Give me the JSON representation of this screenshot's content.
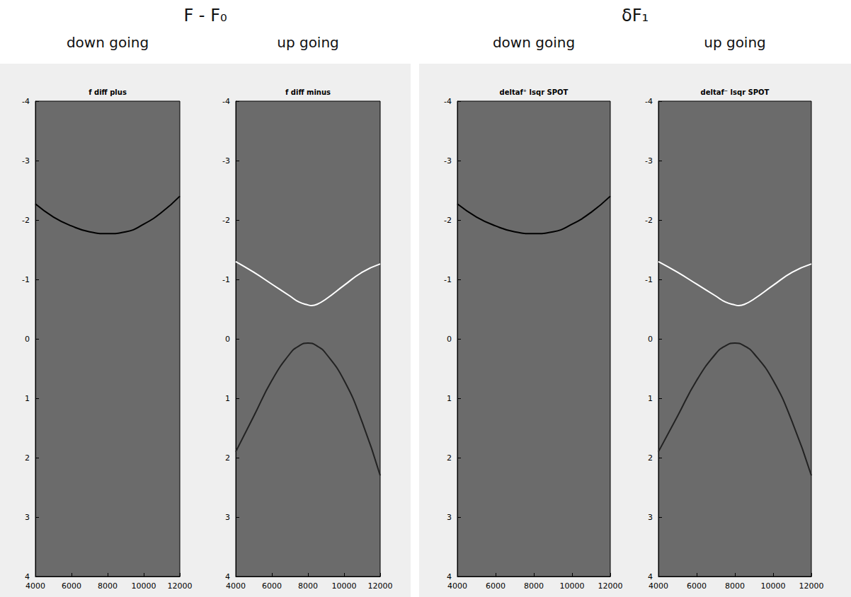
{
  "group_titles": [
    "F - F₀",
    "δF₁"
  ],
  "chart_data": [
    {
      "type": "line",
      "title": "f diff plus",
      "subtitle": "down going",
      "xlim": [
        4000,
        12000
      ],
      "xticks": [
        4000,
        6000,
        8000,
        10000,
        12000
      ],
      "ylim": [
        -4,
        4
      ],
      "yticks": [
        -4,
        -3,
        -2,
        -1,
        0,
        1,
        2,
        3,
        4
      ],
      "series": [
        {
          "color": "#000000",
          "x": [
            4000,
            5000,
            6000,
            7000,
            8000,
            9000,
            10000,
            11000,
            12000
          ],
          "values": [
            -2.27,
            -2.05,
            -1.9,
            -1.8,
            -1.77,
            -1.8,
            -1.93,
            -2.13,
            -2.4
          ]
        }
      ]
    },
    {
      "type": "line",
      "title": "f diff minus",
      "subtitle": "up going",
      "xlim": [
        4000,
        12000
      ],
      "xticks": [
        4000,
        6000,
        8000,
        10000,
        12000
      ],
      "ylim": [
        -4,
        4
      ],
      "yticks": [
        -4,
        -3,
        -2,
        -1,
        0,
        1,
        2,
        3,
        4
      ],
      "series": [
        {
          "color": "#ffffff",
          "x": [
            4000,
            5000,
            6000,
            7000,
            7500,
            8000,
            8200,
            8500,
            9000,
            10000,
            11000,
            12000
          ],
          "values": [
            -1.3,
            -1.12,
            -0.92,
            -0.72,
            -0.62,
            -0.57,
            -0.56,
            -0.58,
            -0.67,
            -0.9,
            -1.12,
            -1.26
          ]
        },
        {
          "color": "#222222",
          "x": [
            4000,
            5000,
            6000,
            7000,
            7500,
            8000,
            8500,
            9000,
            10000,
            11000,
            12000
          ],
          "values": [
            1.9,
            1.3,
            0.7,
            0.25,
            0.12,
            0.07,
            0.12,
            0.25,
            0.7,
            1.4,
            2.3
          ]
        }
      ]
    },
    {
      "type": "line",
      "title": "deltaf⁺ lsqr SPOT",
      "subtitle": "down going",
      "xlim": [
        4000,
        12000
      ],
      "xticks": [
        4000,
        6000,
        8000,
        10000,
        12000
      ],
      "ylim": [
        -4,
        4
      ],
      "yticks": [
        -4,
        -3,
        -2,
        -1,
        0,
        1,
        2,
        3,
        4
      ],
      "series": [
        {
          "color": "#000000",
          "x": [
            4000,
            5000,
            6000,
            7000,
            8000,
            9000,
            10000,
            11000,
            12000
          ],
          "values": [
            -2.27,
            -2.05,
            -1.9,
            -1.8,
            -1.77,
            -1.8,
            -1.93,
            -2.13,
            -2.4
          ]
        }
      ]
    },
    {
      "type": "line",
      "title": "deltaf⁻ lsqr SPOT",
      "subtitle": "up going",
      "xlim": [
        4000,
        12000
      ],
      "xticks": [
        4000,
        6000,
        8000,
        10000,
        12000
      ],
      "ylim": [
        -4,
        4
      ],
      "yticks": [
        -4,
        -3,
        -2,
        -1,
        0,
        1,
        2,
        3,
        4
      ],
      "series": [
        {
          "color": "#ffffff",
          "x": [
            4000,
            5000,
            6000,
            7000,
            7500,
            8000,
            8200,
            8500,
            9000,
            10000,
            11000,
            12000
          ],
          "values": [
            -1.3,
            -1.12,
            -0.92,
            -0.72,
            -0.62,
            -0.57,
            -0.56,
            -0.58,
            -0.67,
            -0.9,
            -1.12,
            -1.26
          ]
        },
        {
          "color": "#222222",
          "x": [
            4000,
            5000,
            6000,
            7000,
            7500,
            8000,
            8500,
            9000,
            10000,
            11000,
            12000
          ],
          "values": [
            1.9,
            1.3,
            0.7,
            0.25,
            0.12,
            0.07,
            0.12,
            0.25,
            0.7,
            1.4,
            2.3
          ]
        }
      ]
    }
  ]
}
